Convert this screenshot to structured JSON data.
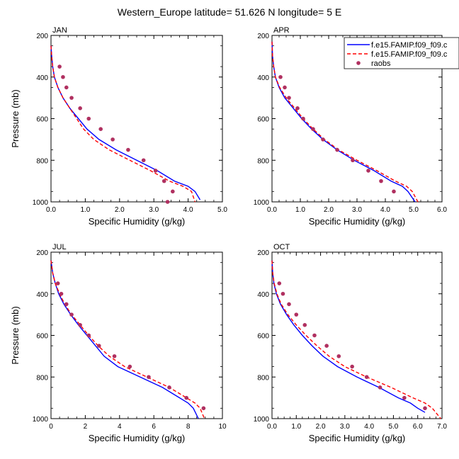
{
  "title": "Western_Europe  latitude= 51.626 N longitude= 5 E",
  "legend": [
    {
      "label": "f.e15.FAMIP.f09_f09.c",
      "color": "#0000ff",
      "style": "solid"
    },
    {
      "label": "f.e15.FAMIP.f09_f09.c",
      "color": "#ff0000",
      "style": "dashed"
    },
    {
      "label": "raobs",
      "color": "#b03060",
      "style": "marker"
    }
  ],
  "chart_data": [
    {
      "type": "line",
      "title": "JAN",
      "xlabel": "Specific Humidity (g/kg)",
      "ylabel": "Pressure (mb)",
      "xlim": [
        0,
        5
      ],
      "ylim": [
        1000,
        200
      ],
      "xticks": [
        "0.0",
        "1.0",
        "2.0",
        "3.0",
        "4.0",
        "5.0"
      ],
      "yticks": [
        "200",
        "400",
        "600",
        "800",
        "1000"
      ],
      "series": [
        {
          "name": "f.e15.FAMIP.f09_f09.c",
          "color": "#0000ff",
          "style": "solid",
          "x": [
            0.0,
            0.02,
            0.05,
            0.1,
            0.2,
            0.35,
            0.55,
            0.8,
            1.05,
            1.4,
            1.9,
            2.5,
            3.1,
            3.6,
            4.0,
            4.2,
            4.35
          ],
          "y": [
            250,
            300,
            350,
            400,
            450,
            500,
            550,
            600,
            650,
            700,
            750,
            800,
            850,
            900,
            925,
            950,
            990
          ]
        },
        {
          "name": "f.e15.FAMIP.f09_f09.c",
          "color": "#ff0000",
          "style": "dashed",
          "x": [
            0.0,
            0.02,
            0.05,
            0.1,
            0.2,
            0.35,
            0.55,
            0.75,
            0.95,
            1.25,
            1.7,
            2.3,
            2.9,
            3.45,
            3.85,
            4.1,
            4.2
          ],
          "y": [
            250,
            300,
            350,
            400,
            450,
            500,
            550,
            600,
            650,
            700,
            750,
            800,
            850,
            900,
            925,
            950,
            1000
          ]
        },
        {
          "name": "raobs",
          "color": "#b03060",
          "style": "marker",
          "x": [
            0.25,
            0.35,
            0.45,
            0.6,
            0.85,
            1.1,
            1.45,
            1.8,
            2.25,
            2.7,
            3.05,
            3.3,
            3.55,
            3.4
          ],
          "y": [
            350,
            400,
            450,
            500,
            550,
            600,
            650,
            700,
            750,
            800,
            850,
            900,
            950,
            1000
          ]
        }
      ]
    },
    {
      "type": "line",
      "title": "APR",
      "xlabel": "Specific Humidity (g/kg)",
      "ylabel": "",
      "xlim": [
        0,
        6
      ],
      "ylim": [
        1000,
        200
      ],
      "xticks": [
        "0.0",
        "1.0",
        "2.0",
        "3.0",
        "4.0",
        "5.0",
        "6.0"
      ],
      "yticks": [
        "200",
        "400",
        "600",
        "800",
        "1000"
      ],
      "series": [
        {
          "name": "f.e15.FAMIP.f09_f09.c",
          "color": "#0000ff",
          "style": "solid",
          "x": [
            0.0,
            0.02,
            0.06,
            0.12,
            0.25,
            0.45,
            0.75,
            1.05,
            1.4,
            1.8,
            2.3,
            2.9,
            3.6,
            4.2,
            4.6,
            4.8,
            5.05
          ],
          "y": [
            230,
            300,
            350,
            400,
            450,
            500,
            550,
            600,
            650,
            700,
            750,
            800,
            850,
            900,
            925,
            950,
            1000
          ]
        },
        {
          "name": "f.e15.FAMIP.f09_f09.c",
          "color": "#ff0000",
          "style": "dashed",
          "x": [
            0.0,
            0.02,
            0.06,
            0.12,
            0.27,
            0.5,
            0.8,
            1.1,
            1.45,
            1.85,
            2.35,
            3.0,
            3.7,
            4.35,
            4.75,
            4.95,
            5.15
          ],
          "y": [
            230,
            300,
            350,
            400,
            450,
            500,
            550,
            600,
            650,
            700,
            750,
            800,
            850,
            900,
            925,
            950,
            1000
          ]
        },
        {
          "name": "raobs",
          "color": "#b03060",
          "style": "marker",
          "x": [
            0.3,
            0.45,
            0.6,
            0.9,
            1.1,
            1.45,
            1.8,
            2.3,
            2.85,
            3.4,
            3.85,
            4.3
          ],
          "y": [
            400,
            450,
            500,
            550,
            600,
            650,
            700,
            750,
            800,
            850,
            900,
            950
          ]
        }
      ]
    },
    {
      "type": "line",
      "title": "JUL",
      "xlabel": "Specific Humidity (g/kg)",
      "ylabel": "Pressure (mb)",
      "xlim": [
        0,
        10
      ],
      "ylim": [
        1000,
        200
      ],
      "xticks": [
        "0",
        "2",
        "4",
        "6",
        "8",
        "10"
      ],
      "yticks": [
        "200",
        "400",
        "600",
        "800",
        "1000"
      ],
      "series": [
        {
          "name": "f.e15.FAMIP.f09_f09.c",
          "color": "#0000ff",
          "style": "solid",
          "x": [
            0.0,
            0.1,
            0.25,
            0.45,
            0.75,
            1.15,
            1.6,
            2.1,
            2.6,
            3.1,
            3.9,
            5.2,
            6.5,
            7.5,
            8.0,
            8.3,
            8.6
          ],
          "y": [
            240,
            300,
            350,
            400,
            450,
            500,
            550,
            600,
            650,
            700,
            750,
            800,
            850,
            900,
            925,
            950,
            1000
          ]
        },
        {
          "name": "f.e15.FAMIP.f09_f09.c",
          "color": "#ff0000",
          "style": "dashed",
          "x": [
            0.0,
            0.1,
            0.25,
            0.5,
            0.8,
            1.2,
            1.7,
            2.2,
            2.75,
            3.4,
            4.3,
            5.6,
            6.9,
            7.9,
            8.4,
            8.7,
            8.95
          ],
          "y": [
            240,
            300,
            350,
            400,
            450,
            500,
            550,
            600,
            650,
            700,
            750,
            800,
            850,
            900,
            925,
            950,
            1000
          ]
        },
        {
          "name": "raobs",
          "color": "#b03060",
          "style": "marker",
          "x": [
            0.4,
            0.6,
            0.9,
            1.2,
            1.7,
            2.2,
            2.8,
            3.7,
            4.6,
            5.7,
            6.9,
            7.9,
            8.9
          ],
          "y": [
            350,
            400,
            450,
            500,
            550,
            600,
            650,
            700,
            750,
            800,
            850,
            900,
            950
          ]
        }
      ]
    },
    {
      "type": "line",
      "title": "OCT",
      "xlabel": "Specific Humidity (g/kg)",
      "ylabel": "",
      "xlim": [
        0,
        7
      ],
      "ylim": [
        1000,
        200
      ],
      "xticks": [
        "0.0",
        "1.0",
        "2.0",
        "3.0",
        "4.0",
        "5.0",
        "6.0",
        "7.0"
      ],
      "yticks": [
        "200",
        "400",
        "600",
        "800",
        "1000"
      ],
      "series": [
        {
          "name": "f.e15.FAMIP.f09_f09.c",
          "color": "#0000ff",
          "style": "solid",
          "x": [
            0.0,
            0.03,
            0.08,
            0.18,
            0.35,
            0.6,
            0.9,
            1.25,
            1.65,
            2.1,
            2.7,
            3.5,
            4.4,
            5.2,
            5.7,
            6.0,
            6.3
          ],
          "y": [
            240,
            300,
            350,
            400,
            450,
            500,
            550,
            600,
            650,
            700,
            750,
            800,
            850,
            900,
            925,
            950,
            970
          ]
        },
        {
          "name": "f.e15.FAMIP.f09_f09.c",
          "color": "#ff0000",
          "style": "dashed",
          "x": [
            0.0,
            0.03,
            0.09,
            0.2,
            0.38,
            0.65,
            1.0,
            1.4,
            1.85,
            2.35,
            3.0,
            3.9,
            4.9,
            5.8,
            6.3,
            6.6,
            6.95
          ],
          "y": [
            240,
            300,
            350,
            400,
            450,
            500,
            550,
            600,
            650,
            700,
            750,
            800,
            850,
            900,
            925,
            950,
            1000
          ]
        },
        {
          "name": "raobs",
          "color": "#b03060",
          "style": "marker",
          "x": [
            0.3,
            0.45,
            0.7,
            1.0,
            1.35,
            1.75,
            2.25,
            2.75,
            3.3,
            3.9,
            4.45,
            5.45,
            6.3
          ],
          "y": [
            350,
            400,
            450,
            500,
            550,
            600,
            650,
            700,
            750,
            800,
            850,
            900,
            950
          ]
        }
      ]
    }
  ]
}
